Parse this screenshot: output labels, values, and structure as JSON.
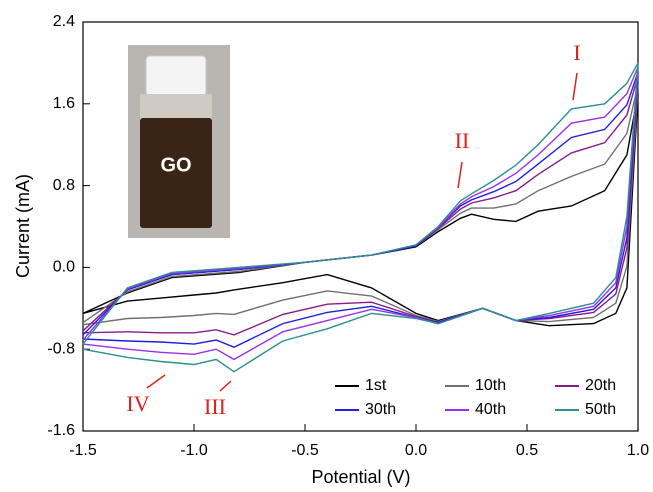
{
  "chart_data": {
    "type": "line",
    "xlabel": "Potential (V)",
    "ylabel": "Current (mA)",
    "x": [
      -1.5,
      -1.3,
      -1.1,
      -0.8,
      -0.5,
      -0.2,
      0,
      0.1,
      0.2,
      0.25,
      0.35,
      0.45,
      0.55,
      0.7,
      0.85,
      0.95,
      1.0,
      0.95,
      0.9,
      0.8,
      0.6,
      0.45,
      0.3,
      0.1,
      0,
      -0.2,
      -0.4,
      -0.6,
      -0.82,
      -0.9,
      -1.0,
      -1.15,
      -1.3,
      -1.5
    ],
    "series": [
      {
        "name": "1st",
        "color": "#000000",
        "values": [
          -0.45,
          -0.25,
          -0.1,
          -0.05,
          0.05,
          0.12,
          0.2,
          0.35,
          0.48,
          0.52,
          0.47,
          0.45,
          0.55,
          0.6,
          0.75,
          1.1,
          1.7,
          -0.2,
          -0.45,
          -0.55,
          -0.57,
          -0.52,
          -0.4,
          -0.52,
          -0.45,
          -0.2,
          -0.07,
          -0.15,
          -0.22,
          -0.25,
          -0.27,
          -0.3,
          -0.33,
          -0.45
        ]
      },
      {
        "name": "10th",
        "color": "#707070",
        "values": [
          -0.54,
          -0.24,
          -0.09,
          -0.04,
          0.05,
          0.12,
          0.21,
          0.37,
          0.53,
          0.58,
          0.58,
          0.62,
          0.75,
          0.89,
          1.01,
          1.31,
          1.79,
          0.01,
          -0.35,
          -0.49,
          -0.53,
          -0.52,
          -0.4,
          -0.53,
          -0.47,
          -0.28,
          -0.23,
          -0.32,
          -0.46,
          -0.45,
          -0.47,
          -0.49,
          -0.5,
          -0.56
        ]
      },
      {
        "name": "20th",
        "color": "#8b1a8b",
        "values": [
          -0.62,
          -0.22,
          -0.07,
          -0.02,
          0.05,
          0.12,
          0.21,
          0.38,
          0.57,
          0.63,
          0.68,
          0.75,
          0.91,
          1.12,
          1.22,
          1.49,
          1.87,
          0.19,
          -0.26,
          -0.44,
          -0.5,
          -0.52,
          -0.4,
          -0.54,
          -0.48,
          -0.34,
          -0.36,
          -0.46,
          -0.66,
          -0.61,
          -0.64,
          -0.64,
          -0.63,
          -0.64
        ]
      },
      {
        "name": "30th",
        "color": "#1f1fe0",
        "values": [
          -0.66,
          -0.22,
          -0.07,
          -0.02,
          0.05,
          0.12,
          0.21,
          0.39,
          0.6,
          0.66,
          0.74,
          0.84,
          1.01,
          1.27,
          1.35,
          1.59,
          1.91,
          0.29,
          -0.2,
          -0.41,
          -0.49,
          -0.52,
          -0.4,
          -0.54,
          -0.49,
          -0.38,
          -0.44,
          -0.55,
          -0.78,
          -0.71,
          -0.75,
          -0.73,
          -0.72,
          -0.7
        ]
      },
      {
        "name": "40th",
        "color": "#9b30e8",
        "values": [
          -0.71,
          -0.21,
          -0.06,
          -0.01,
          0.05,
          0.12,
          0.22,
          0.39,
          0.62,
          0.69,
          0.79,
          0.92,
          1.1,
          1.41,
          1.47,
          1.7,
          1.96,
          0.4,
          -0.15,
          -0.38,
          -0.47,
          -0.52,
          -0.4,
          -0.55,
          -0.49,
          -0.41,
          -0.52,
          -0.63,
          -0.9,
          -0.8,
          -0.85,
          -0.83,
          -0.8,
          -0.75
        ]
      },
      {
        "name": "50th",
        "color": "#2a9090",
        "values": [
          -0.75,
          -0.2,
          -0.05,
          0.0,
          0.05,
          0.12,
          0.22,
          0.4,
          0.65,
          0.72,
          0.85,
          1.0,
          1.2,
          1.55,
          1.6,
          1.8,
          2.0,
          0.5,
          -0.1,
          -0.35,
          -0.45,
          -0.52,
          -0.4,
          -0.55,
          -0.5,
          -0.45,
          -0.6,
          -0.72,
          -1.02,
          -0.9,
          -0.95,
          -0.92,
          -0.88,
          -0.8
        ]
      }
    ],
    "xlim": [
      -1.5,
      1.0
    ],
    "ylim": [
      -1.6,
      2.4
    ],
    "xticks": [
      -1.5,
      {
        "value": -1.0,
        "label": "-1.0"
      },
      -0.5,
      {
        "value": 0,
        "label": "0.0"
      },
      0.5,
      {
        "value": 1.0,
        "label": "1.0"
      }
    ],
    "yticks": [
      -1.6,
      -0.8,
      {
        "value": 0,
        "label": "0.0"
      },
      0.8,
      1.6,
      2.4
    ],
    "annotations": [
      "I",
      "II",
      "III",
      "IV"
    ],
    "inset_label": "GO"
  }
}
